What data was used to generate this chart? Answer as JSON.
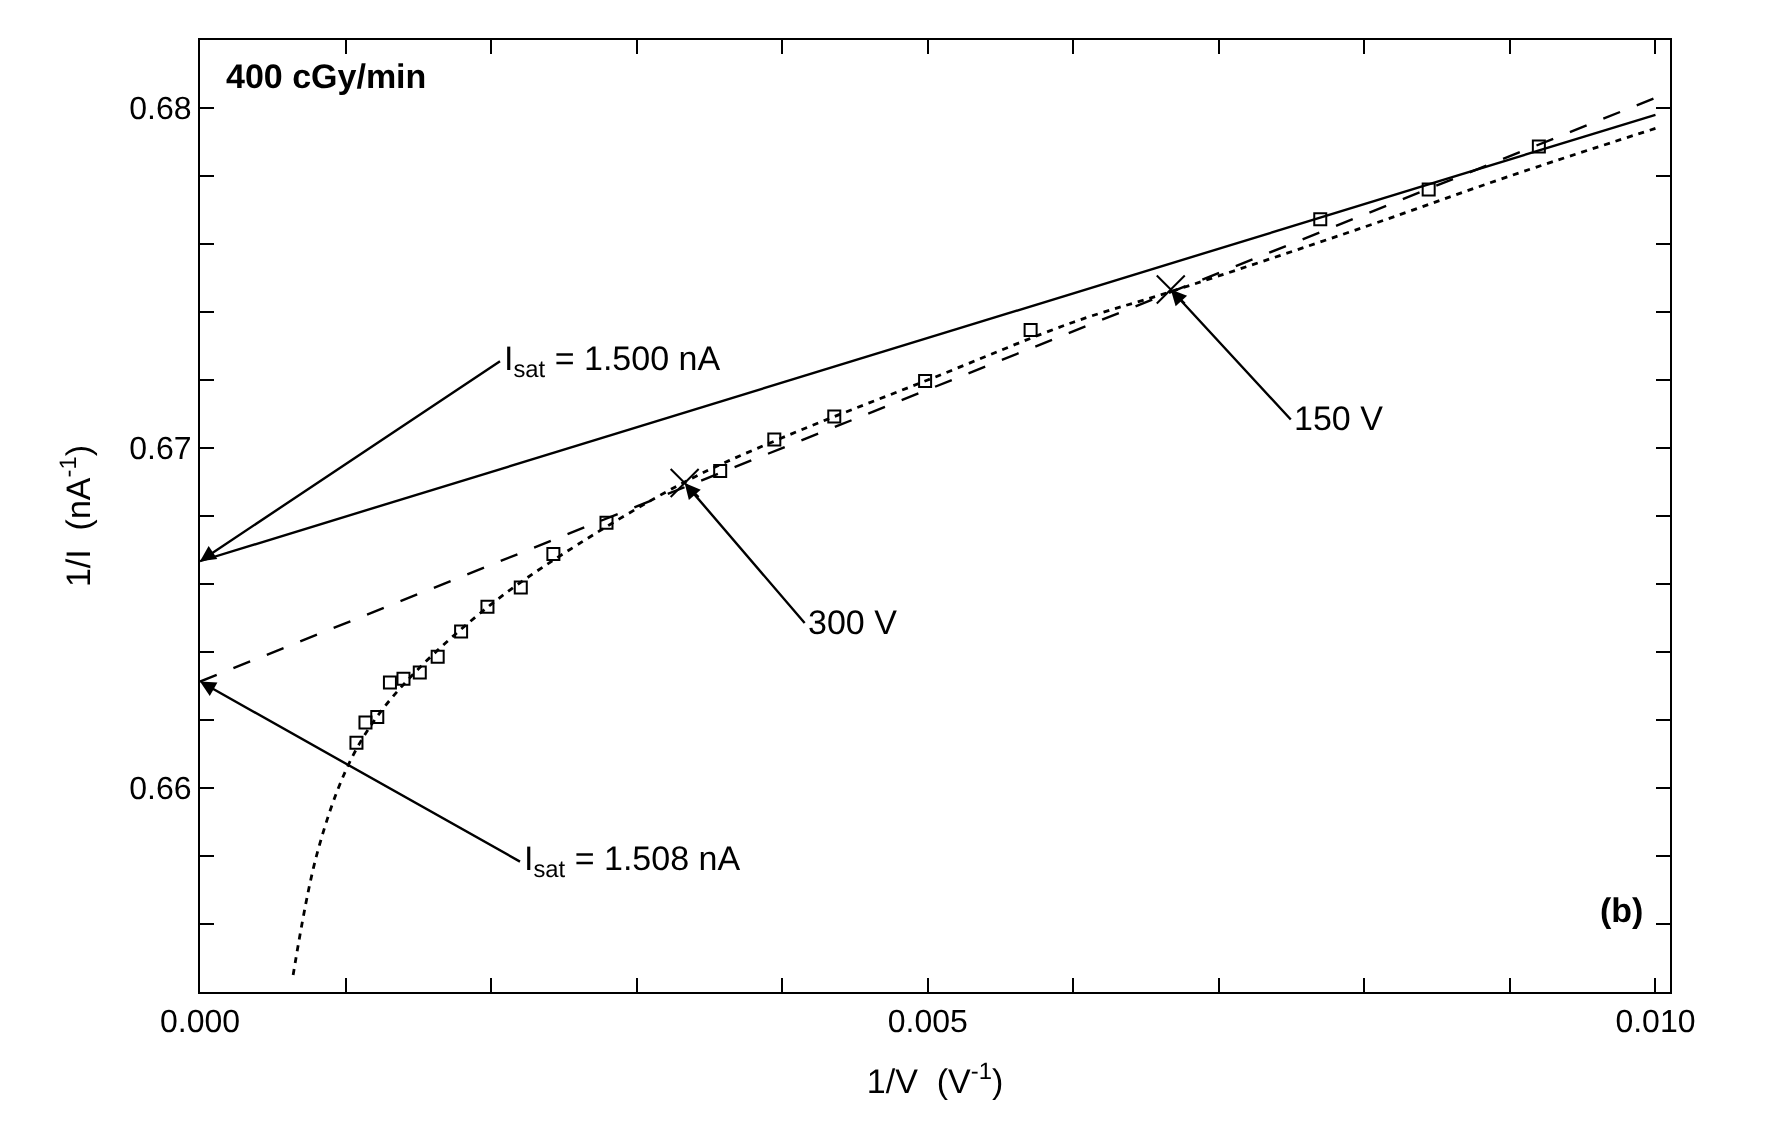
{
  "chart_data": {
    "type": "scatter",
    "xlabel": "1/V  (V$^{-1}$)",
    "ylabel": "1/I  (nA$^{-1}$)",
    "xlim": [
      0,
      0.0101
    ],
    "ylim": [
      0.654,
      0.682
    ],
    "xticks": [
      {
        "value": 0,
        "label": "0.000"
      },
      {
        "value": 0.001,
        "label": null
      },
      {
        "value": 0.002,
        "label": null
      },
      {
        "value": 0.003,
        "label": null
      },
      {
        "value": 0.004,
        "label": null
      },
      {
        "value": 0.005,
        "label": "0.005"
      },
      {
        "value": 0.006,
        "label": null
      },
      {
        "value": 0.007,
        "label": null
      },
      {
        "value": 0.008,
        "label": null
      },
      {
        "value": 0.009,
        "label": null
      },
      {
        "value": 0.01,
        "label": "0.010"
      }
    ],
    "yticks": [
      {
        "value": 0.656,
        "label": null
      },
      {
        "value": 0.658,
        "label": null
      },
      0.66,
      {
        "value": 0.662,
        "label": null
      },
      {
        "value": 0.664,
        "label": null
      },
      {
        "value": 0.666,
        "label": null
      },
      {
        "value": 0.668,
        "label": null
      },
      0.67,
      {
        "value": 0.672,
        "label": null
      },
      {
        "value": 0.674,
        "label": null
      },
      {
        "value": 0.676,
        "label": null
      },
      {
        "value": 0.678,
        "label": null
      },
      0.68
    ],
    "series": [
      {
        "marker": "square",
        "color": "#000000",
        "x": [
          0.001075,
          0.001137,
          0.001218,
          0.001305,
          0.001398,
          0.00151,
          0.001633,
          0.001794,
          0.001975,
          0.002204,
          0.002428,
          0.002793,
          0.003574,
          0.003946,
          0.004358,
          0.004982,
          0.005707,
          0.007697,
          0.008442,
          0.009199
        ],
        "values": [
          0.66133,
          0.66193,
          0.66209,
          0.6631,
          0.66321,
          0.6634,
          0.66386,
          0.6646,
          0.66533,
          0.6659,
          0.66688,
          0.6678,
          0.66932,
          0.67025,
          0.67093,
          0.67197,
          0.67347,
          0.67673,
          0.6776,
          0.67887
        ]
      },
      {
        "type": "line",
        "marker": "none",
        "line_style": "solid",
        "color": "#000000",
        "x": [
          0,
          0.01
        ],
        "values": [
          0.66667,
          0.6798
        ]
      },
      {
        "type": "line",
        "marker": "none",
        "line_style": "dashed",
        "color": "#000000",
        "x": [
          0,
          0.01
        ],
        "values": [
          0.66313,
          0.6803
        ]
      },
      {
        "type": "line",
        "marker": "none",
        "line_style": "dotted",
        "color": "#000000",
        "x": [
          0.00064,
          0.0008,
          0.001,
          0.0012,
          0.0015,
          0.002,
          0.0025,
          0.00333,
          0.004,
          0.005,
          0.006,
          0.00667,
          0.008,
          0.009,
          0.01
        ],
        "values": [
          0.6545,
          0.658,
          0.6605,
          0.662,
          0.6635,
          0.6654,
          0.6669,
          0.669,
          0.6703,
          0.672,
          0.6737,
          0.6746,
          0.6765,
          0.678,
          0.6794
        ]
      },
      {
        "marker": "cross",
        "color": "#000000",
        "x": [
          0.00333,
          0.00667
        ],
        "values": [
          0.66897,
          0.67466
        ]
      }
    ],
    "annotations": [
      "400 cGy/min",
      {
        "text": "I$_{sat}$ = 1.500 nA",
        "x": 0,
        "y": 0.66667
      },
      {
        "text": "I$_{sat}$ = 1.508 nA",
        "x": 0,
        "y": 0.66313
      },
      {
        "text": "300 V",
        "x": 0.00333,
        "y": 0.66897
      },
      {
        "text": "150 V",
        "x": 0.00667,
        "y": 0.67466
      },
      "(b)"
    ]
  }
}
